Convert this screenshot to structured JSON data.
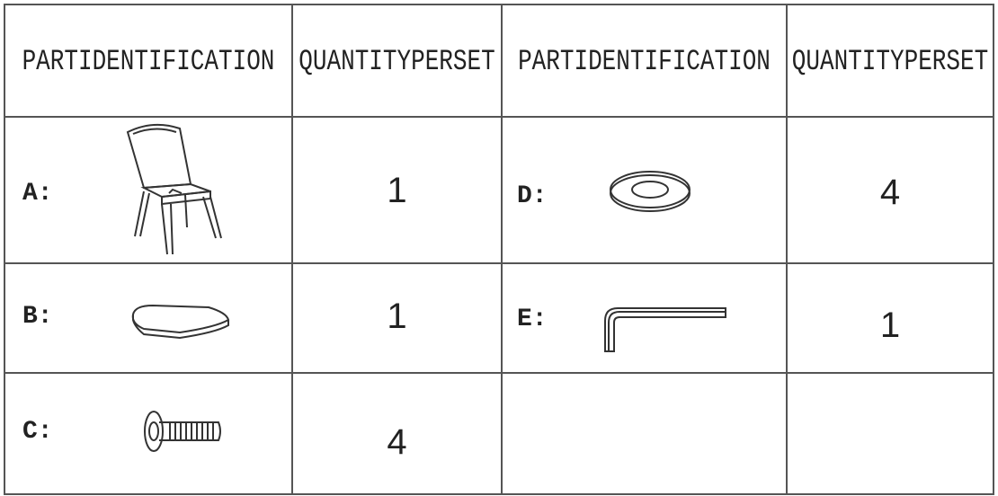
{
  "table": {
    "header": [
      "PARTIDENTIFICATION",
      "QUANTITYPERSET",
      "PARTIDENTIFICATION",
      "QUANTITYPERSET"
    ],
    "rows": [
      [
        "A:",
        1,
        "D:",
        4
      ],
      [
        "B:",
        1,
        "E:",
        1
      ],
      [
        "C:",
        4
      ]
    ]
  }
}
